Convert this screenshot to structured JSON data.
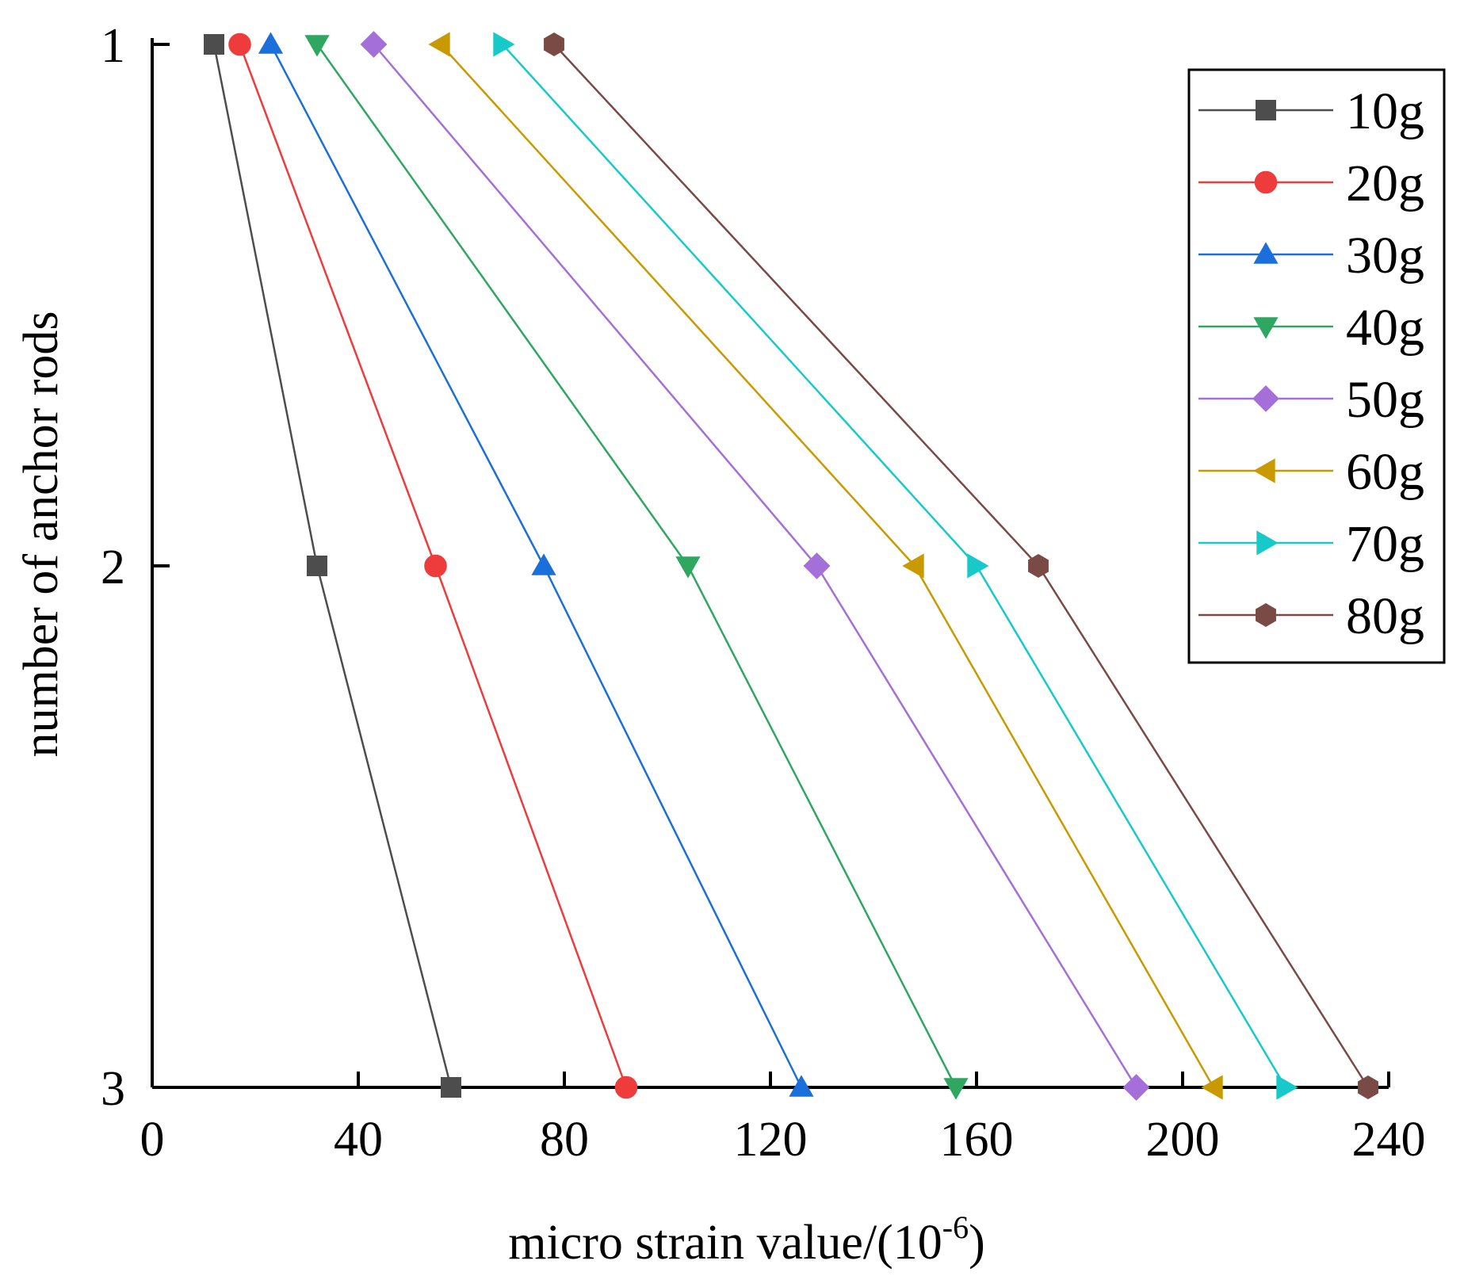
{
  "chart_data": {
    "type": "line",
    "title": "",
    "xlabel": "micro strain value/(10",
    "xlabel_superscript": "-6",
    "xlabel_suffix": ")",
    "ylabel": "number of anchor rods",
    "xlim": [
      0,
      240
    ],
    "ylim": [
      1,
      3
    ],
    "y_inverted": true,
    "x_ticks": [
      "0",
      "40",
      "80",
      "120",
      "160",
      "200",
      "240"
    ],
    "y_ticks": [
      "1",
      "2",
      "3"
    ],
    "grid": false,
    "legend_position": "top-right",
    "series": [
      {
        "name": "10g",
        "color": "#4d4d4d",
        "marker": "square",
        "x": [
          12,
          32,
          58
        ],
        "y": [
          1,
          2,
          3
        ]
      },
      {
        "name": "20g",
        "color": "#ee3b3b",
        "marker": "circle",
        "x": [
          17,
          55,
          92
        ],
        "y": [
          1,
          2,
          3
        ]
      },
      {
        "name": "30g",
        "color": "#1a6fdb",
        "marker": "triangle-up",
        "x": [
          23,
          76,
          126
        ],
        "y": [
          1,
          2,
          3
        ]
      },
      {
        "name": "40g",
        "color": "#2fa760",
        "marker": "triangle-down",
        "x": [
          32,
          104,
          156
        ],
        "y": [
          1,
          2,
          3
        ]
      },
      {
        "name": "50g",
        "color": "#a46fd8",
        "marker": "diamond",
        "x": [
          43,
          129,
          191
        ],
        "y": [
          1,
          2,
          3
        ]
      },
      {
        "name": "60g",
        "color": "#c99a00",
        "marker": "triangle-left",
        "x": [
          56,
          148,
          206
        ],
        "y": [
          1,
          2,
          3
        ]
      },
      {
        "name": "70g",
        "color": "#18c9c9",
        "marker": "triangle-right",
        "x": [
          68,
          160,
          220
        ],
        "y": [
          1,
          2,
          3
        ]
      },
      {
        "name": "80g",
        "color": "#7a4a45",
        "marker": "hexagon",
        "x": [
          78,
          172,
          236
        ],
        "y": [
          1,
          2,
          3
        ]
      }
    ]
  }
}
